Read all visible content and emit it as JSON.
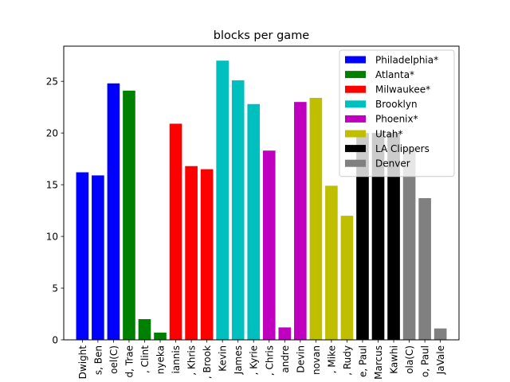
{
  "chart_data": {
    "type": "bar",
    "title": "blocks per game",
    "xlabel": "",
    "ylabel": "",
    "ylim": [
      0,
      28.4
    ],
    "yticks": [
      0,
      5,
      10,
      15,
      20,
      25
    ],
    "grid": false,
    "legend_position": "top-right",
    "categories": [
      "Dwight",
      "s, Ben",
      "oel(C)",
      "d, Trae",
      ", Clint",
      "nyeka",
      "iannis",
      ", Khris",
      ", Brook",
      "Kevin",
      "James",
      ", Kyrie",
      ", Chris",
      "andre",
      "Devin",
      "novan",
      ", Mike",
      ", Rudy",
      "e, Paul",
      "Marcus",
      "Kawhi",
      "ola(C)",
      "o, Paul",
      "JaVale"
    ],
    "values": [
      16.2,
      15.9,
      24.8,
      24.1,
      2.0,
      0.7,
      20.9,
      16.8,
      16.5,
      27.0,
      25.1,
      22.8,
      18.3,
      1.2,
      23.0,
      23.4,
      14.9,
      12.0,
      20.0,
      20.0,
      20.0,
      18.5,
      13.7,
      1.1
    ],
    "series": [
      {
        "name": "Philadelphia*",
        "color": "#0000ff",
        "indices": [
          0,
          1,
          2
        ]
      },
      {
        "name": "Atlanta*",
        "color": "#008000",
        "indices": [
          3,
          4,
          5
        ]
      },
      {
        "name": "Milwaukee*",
        "color": "#ff0000",
        "indices": [
          6,
          7,
          8
        ]
      },
      {
        "name": "Brooklyn",
        "color": "#00bfbf",
        "indices": [
          9,
          10,
          11
        ]
      },
      {
        "name": "Phoenix*",
        "color": "#bf00bf",
        "indices": [
          12,
          13,
          14
        ]
      },
      {
        "name": "Utah*",
        "color": "#bfbf00",
        "indices": [
          15,
          16,
          17
        ]
      },
      {
        "name": "LA Clippers",
        "color": "#000000",
        "indices": [
          18,
          19,
          20
        ]
      },
      {
        "name": "Denver",
        "color": "#808080",
        "indices": [
          21,
          22,
          23
        ]
      }
    ]
  }
}
